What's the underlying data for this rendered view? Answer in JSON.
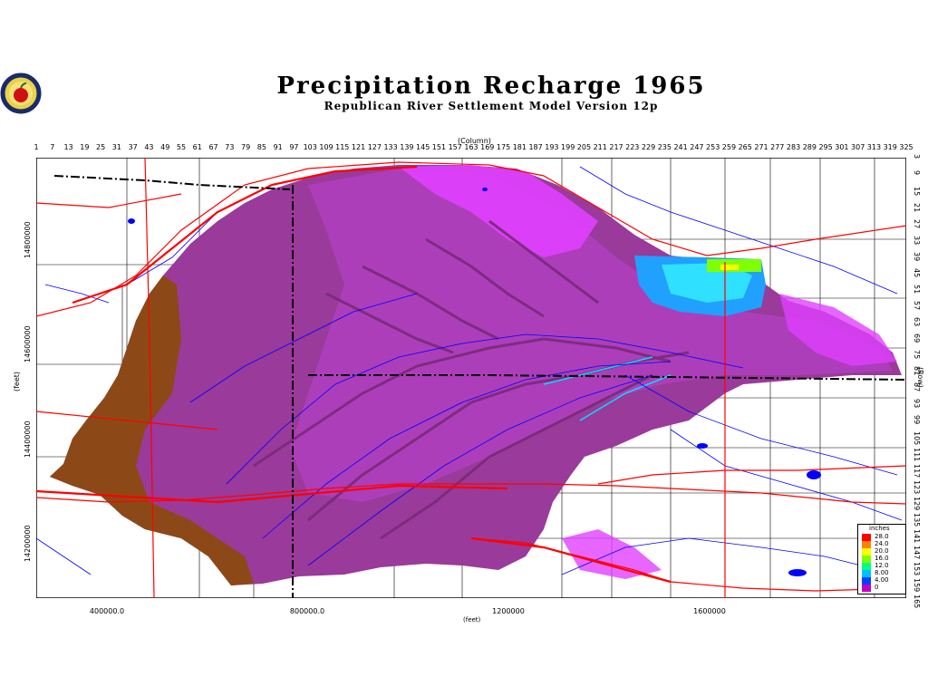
{
  "title": "Precipitation Recharge 1965",
  "subtitle": "Republican River Settlement Model Version 12p",
  "logo": {
    "icon": "apple-seal-icon"
  },
  "axes": {
    "column_label": "(Column)",
    "column_ticks": [
      "1",
      "7",
      "13",
      "19",
      "25",
      "31",
      "37",
      "43",
      "49",
      "55",
      "61",
      "67",
      "73",
      "79",
      "85",
      "91",
      "97",
      "103",
      "109",
      "115",
      "121",
      "127",
      "133",
      "139",
      "145",
      "151",
      "157",
      "163",
      "169",
      "175",
      "181",
      "187",
      "193",
      "199",
      "205",
      "211",
      "217",
      "223",
      "229",
      "235",
      "241",
      "247",
      "253",
      "259",
      "265",
      "271",
      "277",
      "283",
      "289",
      "295",
      "301",
      "307",
      "313",
      "319",
      "325"
    ],
    "row_label": "(Row)",
    "row_ticks": [
      "3",
      "9",
      "15",
      "21",
      "27",
      "33",
      "39",
      "45",
      "51",
      "57",
      "63",
      "69",
      "75",
      "81",
      "87",
      "93",
      "99",
      "105",
      "111",
      "117",
      "123",
      "129",
      "135",
      "141",
      "147",
      "153",
      "159",
      "165"
    ],
    "y_label": "(feet)",
    "y_ticks": [
      "14800000",
      "14600000",
      "14400000",
      "14200000"
    ],
    "x_label": "(feet)",
    "x_ticks": [
      "400000.0",
      "800000.0",
      "1200000",
      "1600000"
    ]
  },
  "legend": {
    "title": "inches",
    "items": [
      {
        "label": "28.0",
        "color": "#ff0000"
      },
      {
        "label": "24.0",
        "color": "#ff8000"
      },
      {
        "label": "20.0",
        "color": "#ffff00"
      },
      {
        "label": "16.0",
        "color": "#80ff00"
      },
      {
        "label": "12.0",
        "color": "#00ff80"
      },
      {
        "label": "8.00",
        "color": "#00c0ff"
      },
      {
        "label": "4.00",
        "color": "#0040ff"
      },
      {
        "label": "0",
        "color": "#c000c0"
      }
    ]
  },
  "colors": {
    "low_recharge": "#8b4a10",
    "basin_base": "#9a3a9a",
    "basin_mid": "#b040c0",
    "basin_high": "#e040ff",
    "high_recharge": "#20a0ff",
    "roads": "#ff0000",
    "rivers": "#0000ff",
    "boundaries": "#000000"
  }
}
